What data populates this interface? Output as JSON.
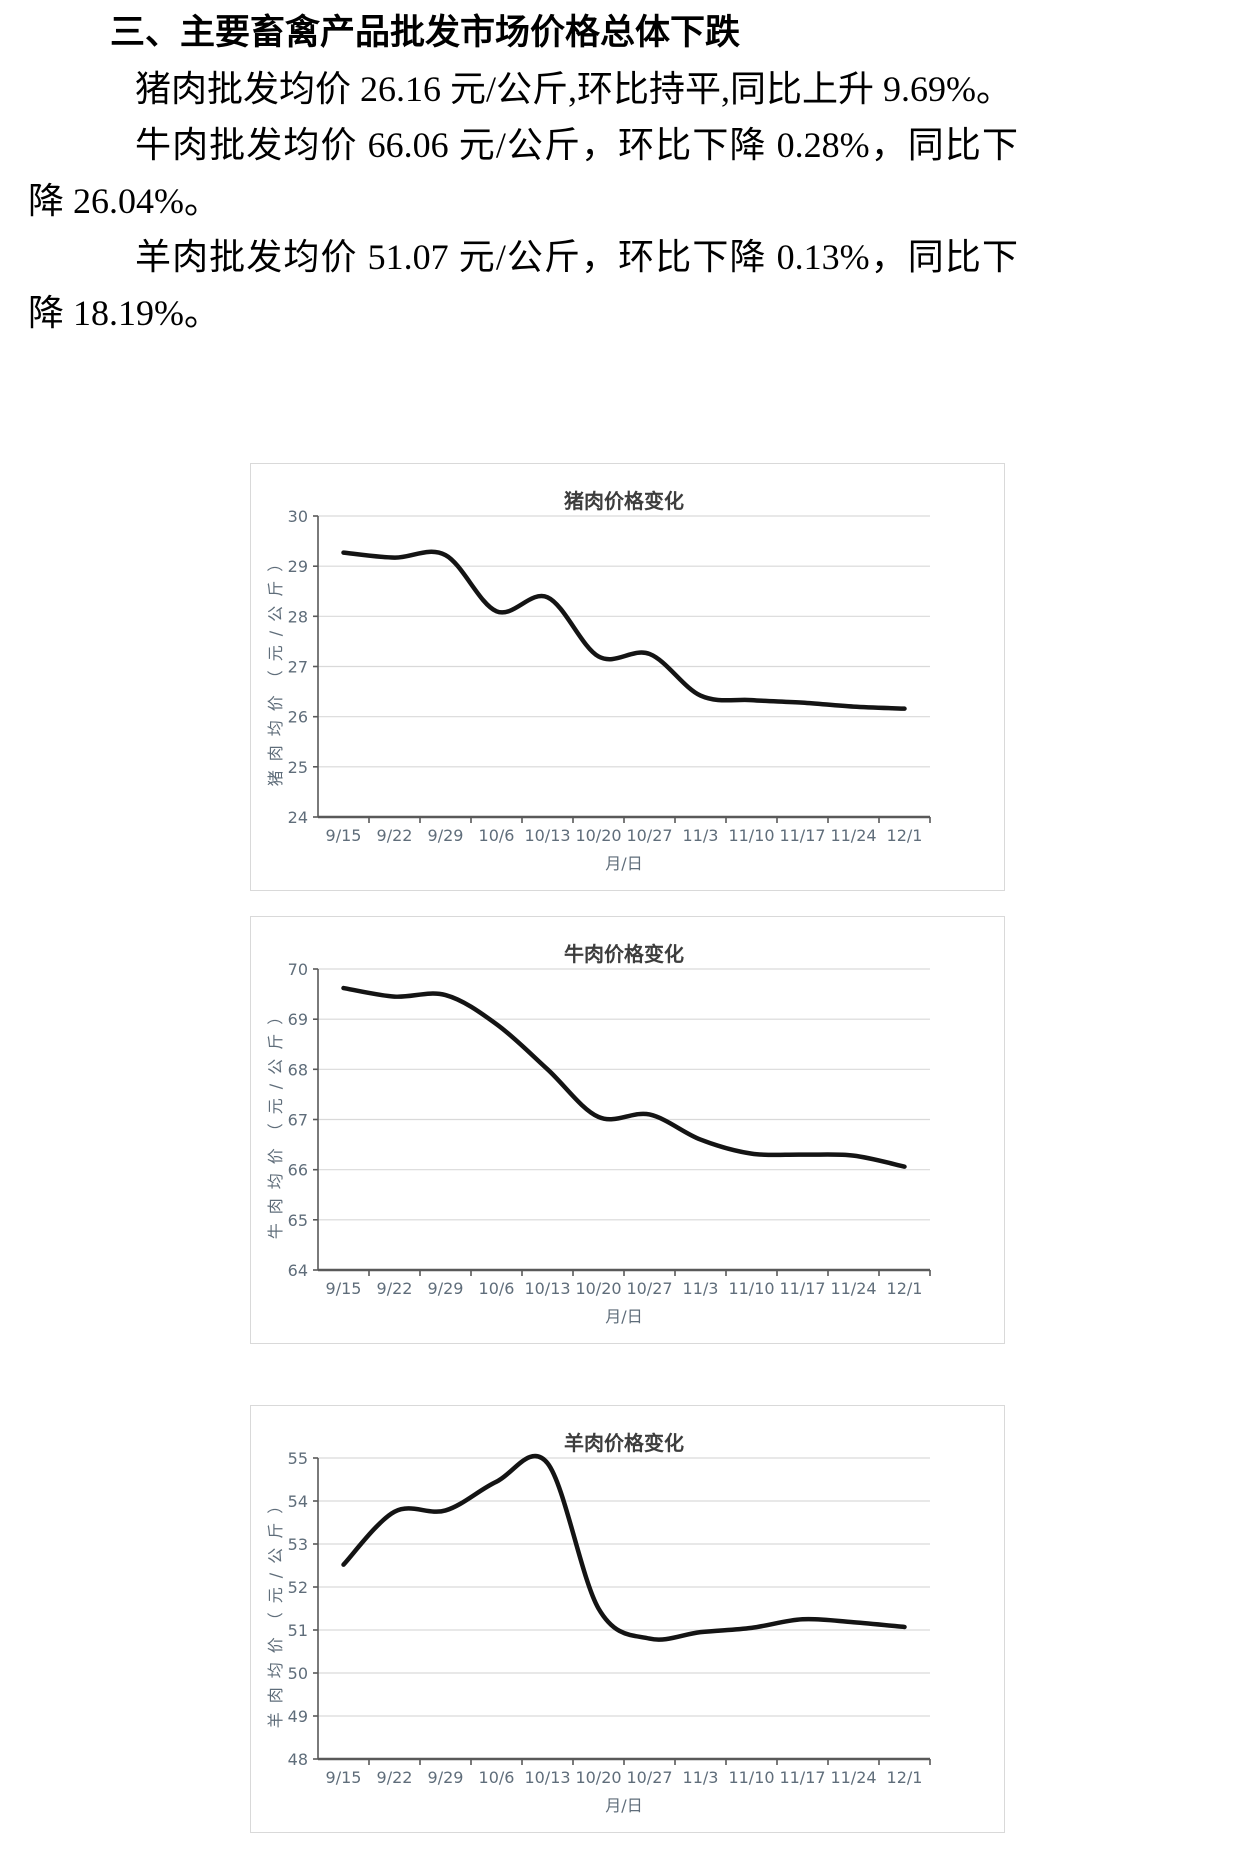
{
  "document": {
    "heading": "三、主要畜禽产品批发市场价格总体下跌",
    "paragraphs": {
      "pork_line1": "猪肉批发均价 26.16 元/公斤,环比持平,同比上升 9.69%。",
      "beef_line1": "牛肉批发均价 66.06 元/公斤，环比下降 0.28%，同比下",
      "beef_line2": "降 26.04%。",
      "mutton_line1": "羊肉批发均价 51.07 元/公斤，环比下降 0.13%，同比下",
      "mutton_line2": "降 18.19%。"
    }
  },
  "colors": {
    "background": "#ffffff",
    "text": "#000000",
    "chart_line": "#141414",
    "chart_title": "#3d3d3d",
    "axis_line": "#595959",
    "tick_label": "#5f6d7a",
    "gridline": "#d9d9d9",
    "panel_border": "#d9d9d9"
  },
  "chart_data": [
    {
      "name": "pork-price-chart",
      "type": "line",
      "smooth": true,
      "title": "猪肉价格变化",
      "xlabel": "月/日",
      "ylabel": "猪肉均价（元/公斤）",
      "categories": [
        "9/15",
        "9/22",
        "9/29",
        "10/6",
        "10/13",
        "10/20",
        "10/27",
        "11/3",
        "11/10",
        "11/17",
        "11/24",
        "12/1"
      ],
      "values": [
        29.27,
        29.17,
        29.22,
        28.1,
        28.38,
        27.2,
        27.25,
        26.42,
        26.33,
        26.28,
        26.2,
        26.16
      ],
      "ylim": [
        24,
        30
      ],
      "ytick_step": 1,
      "grid": true,
      "legend": "none"
    },
    {
      "name": "beef-price-chart",
      "type": "line",
      "smooth": true,
      "title": "牛肉价格变化",
      "xlabel": "月/日",
      "ylabel": "牛肉均价（元/公斤）",
      "categories": [
        "9/15",
        "9/22",
        "9/29",
        "10/6",
        "10/13",
        "10/20",
        "10/27",
        "11/3",
        "11/10",
        "11/17",
        "11/24",
        "12/1"
      ],
      "values": [
        69.62,
        69.45,
        69.48,
        68.9,
        68.0,
        67.05,
        67.1,
        66.6,
        66.32,
        66.3,
        66.28,
        66.06
      ],
      "ylim": [
        64,
        70
      ],
      "ytick_step": 1,
      "grid": true,
      "legend": "none"
    },
    {
      "name": "mutton-price-chart",
      "type": "line",
      "smooth": true,
      "title": "羊肉价格变化",
      "xlabel": "月/日",
      "ylabel": "羊肉均价（元/公斤）",
      "categories": [
        "9/15",
        "9/22",
        "9/29",
        "10/6",
        "10/13",
        "10/20",
        "10/27",
        "11/3",
        "11/10",
        "11/17",
        "11/24",
        "12/1"
      ],
      "values": [
        52.52,
        53.75,
        53.78,
        54.45,
        54.88,
        51.5,
        50.8,
        50.95,
        51.05,
        51.25,
        51.18,
        51.07
      ],
      "ylim": [
        48,
        55
      ],
      "ytick_step": 1,
      "grid": true,
      "legend": "none"
    }
  ]
}
